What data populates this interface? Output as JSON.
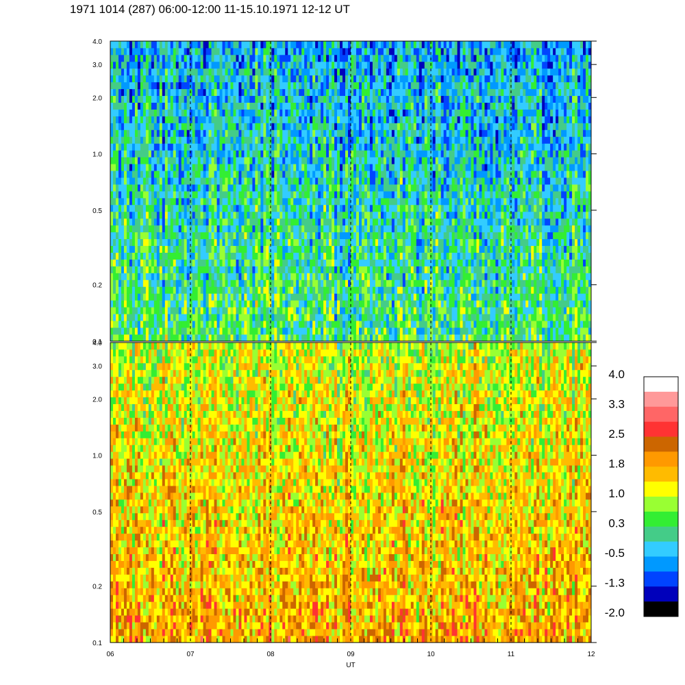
{
  "title": "1971 1014 (287) 06:00-12:00 11-15.10.1971  12-12 UT",
  "chart_data": {
    "type": "heatmap",
    "xlabel": "UT",
    "x_ticks": [
      "06",
      "07",
      "08",
      "09",
      "10",
      "11",
      "12"
    ],
    "x_range": [
      6,
      12
    ],
    "panels": [
      {
        "name": "upper",
        "y_scale": "log",
        "ylim": [
          0.1,
          4.0
        ],
        "y_ticks": [
          {
            "label": "0.1",
            "value": 0.1
          },
          {
            "label": "0.2",
            "value": 0.2
          },
          {
            "label": "0.5",
            "value": 0.5
          },
          {
            "label": "1.0",
            "value": 1.0
          },
          {
            "label": "2.0",
            "value": 2.0
          },
          {
            "label": "3.0",
            "value": 3.0
          },
          {
            "label": "4.0",
            "value": 4.0
          }
        ],
        "dominant_level_low_freq": 0.3,
        "dominant_level_high_freq": -0.5
      },
      {
        "name": "lower",
        "y_scale": "log",
        "ylim": [
          0.1,
          4.0
        ],
        "y_ticks": [
          {
            "label": "0.1",
            "value": 0.1
          },
          {
            "label": "0.2",
            "value": 0.2
          },
          {
            "label": "0.5",
            "value": 0.5
          },
          {
            "label": "1.0",
            "value": 1.0
          },
          {
            "label": "2.0",
            "value": 2.0
          },
          {
            "label": "3.0",
            "value": 3.0
          },
          {
            "label": "4.0",
            "value": 4.0
          }
        ],
        "dominant_level_low_freq": 1.8,
        "dominant_level_high_freq": 1.0
      }
    ],
    "colorbar": {
      "labels": [
        "4.0",
        "3.3",
        "2.5",
        "1.8",
        "1.0",
        "0.3",
        "-0.5",
        "-1.3",
        "-2.0"
      ],
      "colors": [
        "#ffffff",
        "#ff9999",
        "#ff6666",
        "#ff3333",
        "#cc6600",
        "#ff9900",
        "#ffbb00",
        "#ffff00",
        "#99ff33",
        "#33ee33",
        "#44cc88",
        "#33ccff",
        "#0099ff",
        "#0044ff",
        "#0000bb",
        "#000000"
      ]
    },
    "grid": "dashed vertical lines at each hour"
  }
}
